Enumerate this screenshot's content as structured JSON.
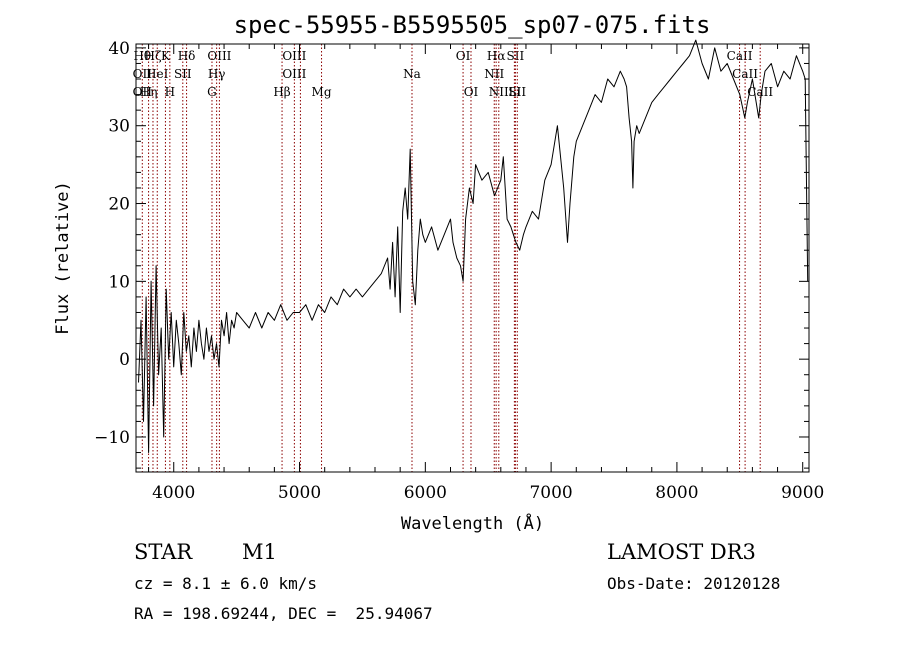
{
  "chart_data": {
    "type": "line",
    "title": "spec-55955-B5595505_sp07-075.fits",
    "xlabel": "Wavelength (Å)",
    "ylabel": "Flux (relative)",
    "xlim": [
      3700,
      9050
    ],
    "ylim": [
      -14.5,
      40.5
    ],
    "xticks": [
      4000,
      5000,
      6000,
      7000,
      8000,
      9000
    ],
    "yticks": [
      -10,
      0,
      10,
      20,
      30,
      40
    ],
    "grid": false,
    "legend": "none",
    "line_color": "#000000",
    "marker_color": "#8b0000",
    "series": [
      {
        "x": [
          3720,
          3740,
          3760,
          3780,
          3800,
          3820,
          3840,
          3860,
          3880,
          3900,
          3920,
          3940,
          3960,
          3980,
          4000,
          4020,
          4040,
          4060,
          4080,
          4100,
          4120,
          4140,
          4160,
          4180,
          4200,
          4220,
          4240,
          4260,
          4280,
          4300,
          4320,
          4340,
          4360,
          4380,
          4400,
          4420,
          4440,
          4460,
          4480,
          4500,
          4550,
          4600,
          4650,
          4700,
          4750,
          4800,
          4850,
          4900,
          4950,
          5000,
          5050,
          5100,
          5150,
          5200,
          5250,
          5300,
          5350,
          5400,
          5450,
          5500,
          5550,
          5600,
          5650,
          5700,
          5720,
          5740,
          5760,
          5780,
          5800,
          5820,
          5840,
          5860,
          5880,
          5900,
          5920,
          5940,
          5960,
          5980,
          6000,
          6050,
          6100,
          6150,
          6200,
          6220,
          6250,
          6280,
          6300,
          6320,
          6350,
          6380,
          6400,
          6450,
          6500,
          6550,
          6600,
          6620,
          6650,
          6680,
          6700,
          6720,
          6750,
          6780,
          6800,
          6850,
          6900,
          6950,
          7000,
          7050,
          7100,
          7130,
          7150,
          7180,
          7200,
          7250,
          7300,
          7350,
          7400,
          7450,
          7500,
          7550,
          7580,
          7600,
          7620,
          7640,
          7650,
          7660,
          7680,
          7700,
          7750,
          7800,
          7850,
          7900,
          7950,
          8000,
          8050,
          8100,
          8150,
          8200,
          8250,
          8300,
          8350,
          8400,
          8450,
          8500,
          8540,
          8560,
          8600,
          8650,
          8670,
          8700,
          8750,
          8800,
          8850,
          8900,
          8950,
          9000,
          9020,
          9040
        ],
        "y": [
          -3,
          5,
          -8,
          8,
          -12,
          10,
          -6,
          12,
          -2,
          4,
          -10,
          9,
          0,
          6,
          -1,
          5,
          2,
          -2,
          6,
          1,
          3,
          -1,
          4,
          1,
          5,
          2,
          0,
          4,
          1,
          3,
          0,
          2,
          -1,
          5,
          3,
          6,
          2,
          5,
          4,
          6,
          5,
          4,
          6,
          4,
          6,
          5,
          7,
          5,
          6,
          6,
          7,
          5,
          7,
          6,
          8,
          7,
          9,
          8,
          9,
          8,
          9,
          10,
          11,
          13,
          9,
          15,
          8,
          17,
          6,
          19,
          22,
          18,
          27,
          10,
          7,
          14,
          18,
          16,
          15,
          17,
          14,
          16,
          18,
          15,
          13,
          12,
          10,
          18,
          22,
          20,
          25,
          23,
          24,
          21,
          23,
          26,
          18,
          17,
          16,
          15,
          14,
          16,
          17,
          19,
          18,
          23,
          25,
          30,
          22,
          15,
          20,
          26,
          28,
          30,
          32,
          34,
          33,
          36,
          35,
          37,
          36,
          35,
          31,
          28,
          22,
          28,
          30,
          29,
          31,
          33,
          34,
          35,
          36,
          37,
          38,
          39,
          41,
          38,
          36,
          40,
          37,
          38,
          36,
          34,
          31,
          33,
          36,
          31,
          34,
          37,
          38,
          35,
          37,
          36,
          39,
          37,
          36,
          10
        ]
      }
    ],
    "lines": [
      {
        "w": 3750,
        "labels": [
          "Hθ",
          "OII",
          "OII"
        ]
      },
      {
        "w": 3800,
        "labels": [
          "",
          "",
          "Hη"
        ]
      },
      {
        "w": 3835,
        "labels": [
          "Hζ"
        ]
      },
      {
        "w": 3869,
        "labels": [
          "",
          "HeI"
        ]
      },
      {
        "w": 3934,
        "labels": [
          "K"
        ]
      },
      {
        "w": 3969,
        "labels": [
          "",
          "",
          "H"
        ]
      },
      {
        "w": 4072,
        "labels": [
          "",
          "SII"
        ]
      },
      {
        "w": 4102,
        "labels": [
          "Hδ"
        ]
      },
      {
        "w": 4304,
        "labels": [
          "",
          "",
          "G"
        ]
      },
      {
        "w": 4341,
        "labels": [
          "",
          "Hγ"
        ]
      },
      {
        "w": 4363,
        "labels": [
          "OIII"
        ]
      },
      {
        "w": 4861,
        "labels": [
          "",
          "",
          "Hβ"
        ]
      },
      {
        "w": 4959,
        "labels": [
          "OIII",
          "OIII"
        ]
      },
      {
        "w": 5007,
        "labels": []
      },
      {
        "w": 5175,
        "labels": [
          "",
          "",
          "Mg"
        ]
      },
      {
        "w": 5894,
        "labels": [
          "",
          "Na"
        ]
      },
      {
        "w": 6300,
        "labels": [
          "OI"
        ]
      },
      {
        "w": 6363,
        "labels": [
          "",
          "",
          "OI"
        ]
      },
      {
        "w": 6548,
        "labels": [
          "",
          "NII"
        ]
      },
      {
        "w": 6563,
        "labels": [
          "Hα"
        ]
      },
      {
        "w": 6584,
        "labels": [
          "",
          "",
          "NII"
        ]
      },
      {
        "w": 6708,
        "labels": [
          "",
          "",
          "Li"
        ]
      },
      {
        "w": 6716,
        "labels": [
          "SII"
        ]
      },
      {
        "w": 6731,
        "labels": [
          "",
          "",
          "SII"
        ]
      },
      {
        "w": 8498,
        "labels": [
          "CaII"
        ]
      },
      {
        "w": 8542,
        "labels": [
          "",
          "CaII"
        ]
      },
      {
        "w": 8662,
        "labels": [
          "",
          "",
          "CaII"
        ]
      }
    ]
  },
  "info": {
    "object_class": "STAR",
    "subclass": "M1",
    "survey": "LAMOST DR3",
    "cz": "cz = 8.1 ± 6.0 km/s",
    "obs_date": "Obs-Date: 20120128",
    "coords": "RA = 198.69244, DEC =  25.94067"
  }
}
